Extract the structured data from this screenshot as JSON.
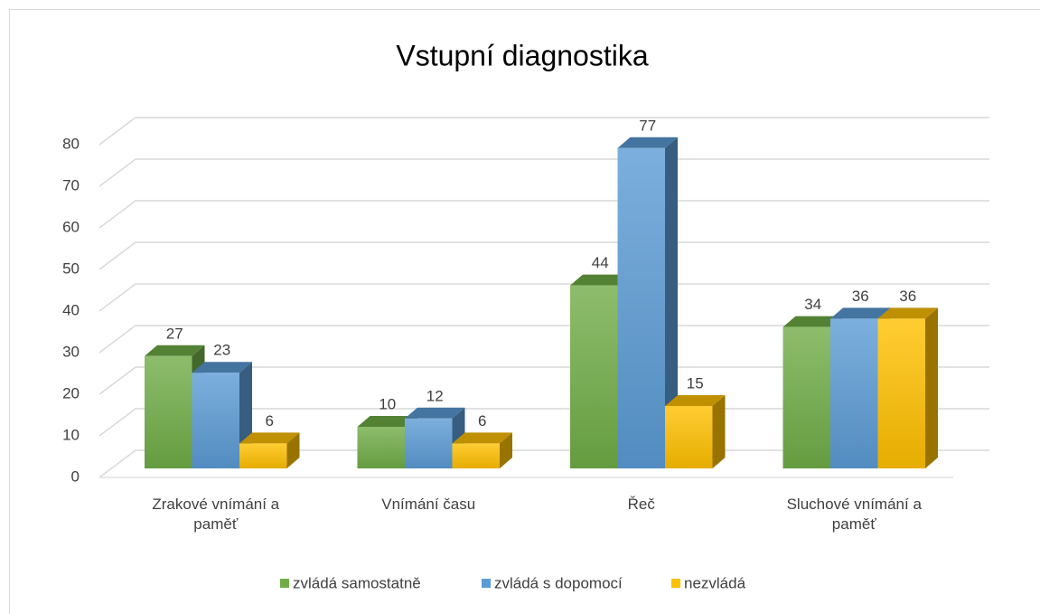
{
  "chart_data": {
    "type": "bar3d",
    "title": "Vstupní diagnostika",
    "categories": [
      "Zrakové vnímání a paměť",
      "Vnímání času",
      "Řeč",
      "Sluchové vnímání a paměť"
    ],
    "series": [
      {
        "name": "zvládá samostatně",
        "color": "#70ad47",
        "values": [
          27,
          10,
          44,
          34
        ]
      },
      {
        "name": "zvládá s dopomocí",
        "color": "#5b9bd5",
        "values": [
          23,
          12,
          77,
          36
        ]
      },
      {
        "name": "nezvládá",
        "color": "#ffc000",
        "values": [
          6,
          6,
          15,
          36
        ]
      }
    ],
    "ylim": [
      0,
      80
    ],
    "yticks": [
      0,
      10,
      20,
      30,
      40,
      50,
      60,
      70,
      80
    ],
    "grid": true,
    "legend": "bottom"
  }
}
